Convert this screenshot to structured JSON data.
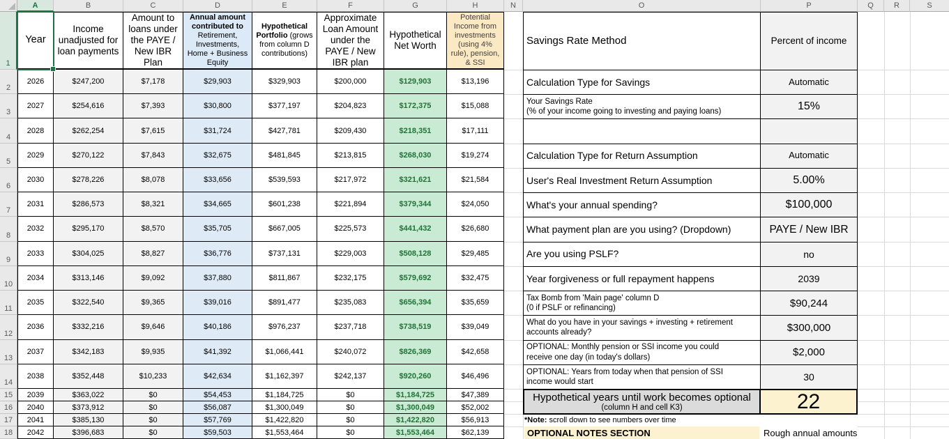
{
  "sheet": {
    "column_letters": [
      "A",
      "B",
      "C",
      "D",
      "E",
      "F",
      "G",
      "H",
      "N",
      "O",
      "P",
      "Q",
      "R",
      "S"
    ],
    "selected_column": "A",
    "selected_cell": "A1",
    "visible_rows": 18
  },
  "colors": {
    "selection_accent": "#217346",
    "good_cell_fill": "#c9ebd3",
    "good_cell_text": "#1f7235",
    "blue_column_fill": "#deebf7",
    "tan_header_fill": "#fbe9c4",
    "yellow_highlight_fill": "#fdf2cf",
    "input_cell_fill": "#f2f2f2",
    "summary_label_fill": "#dbdbdb"
  },
  "table": {
    "headers": [
      {
        "text": "Year"
      },
      {
        "text": "Income unadjusted for loan payments"
      },
      {
        "text": "Amount to loans under the PAYE / New IBR Plan"
      },
      {
        "bold": "Annual amount contributed to",
        "rest": " Retirement, Investments, Home + Business Equity"
      },
      {
        "bold": "Hypothetical Portfolio",
        "rest": " (grows from column D contributions)"
      },
      {
        "text": "Approximate Loan Amount under the PAYE / New IBR plan"
      },
      {
        "text": "Hypothetical Net Worth"
      },
      {
        "text": "Potential Income from investments (using 4% rule), pension, & SSI"
      }
    ],
    "rows": [
      [
        "2026",
        "$247,200",
        "$7,178",
        "$29,903",
        "$329,903",
        "$200,000",
        "$129,903",
        "$13,196"
      ],
      [
        "2027",
        "$254,616",
        "$7,393",
        "$30,800",
        "$377,197",
        "$204,823",
        "$172,375",
        "$15,088"
      ],
      [
        "2028",
        "$262,254",
        "$7,615",
        "$31,724",
        "$427,781",
        "$209,430",
        "$218,351",
        "$17,111"
      ],
      [
        "2029",
        "$270,122",
        "$7,843",
        "$32,675",
        "$481,845",
        "$213,815",
        "$268,030",
        "$19,274"
      ],
      [
        "2030",
        "$278,226",
        "$8,078",
        "$33,656",
        "$539,593",
        "$217,972",
        "$321,621",
        "$21,584"
      ],
      [
        "2031",
        "$286,573",
        "$8,321",
        "$34,665",
        "$601,238",
        "$221,894",
        "$379,344",
        "$24,050"
      ],
      [
        "2032",
        "$295,170",
        "$8,570",
        "$35,705",
        "$667,005",
        "$225,573",
        "$441,432",
        "$26,680"
      ],
      [
        "2033",
        "$304,025",
        "$8,827",
        "$36,776",
        "$737,131",
        "$229,003",
        "$508,128",
        "$29,485"
      ],
      [
        "2034",
        "$313,146",
        "$9,092",
        "$37,880",
        "$811,867",
        "$232,175",
        "$579,692",
        "$32,475"
      ],
      [
        "2035",
        "$322,540",
        "$9,365",
        "$39,016",
        "$891,477",
        "$235,083",
        "$656,394",
        "$35,659"
      ],
      [
        "2036",
        "$332,216",
        "$9,646",
        "$40,186",
        "$976,237",
        "$237,718",
        "$738,519",
        "$39,049"
      ],
      [
        "2037",
        "$342,183",
        "$9,935",
        "$41,392",
        "$1,066,441",
        "$240,072",
        "$826,369",
        "$42,658"
      ],
      [
        "2038",
        "$352,448",
        "$10,233",
        "$42,634",
        "$1,162,397",
        "$242,137",
        "$920,260",
        "$46,496"
      ],
      [
        "2039",
        "$363,022",
        "$0",
        "$54,453",
        "$1,184,725",
        "$0",
        "$1,184,725",
        "$47,389"
      ],
      [
        "2040",
        "$373,912",
        "$0",
        "$56,087",
        "$1,300,049",
        "$0",
        "$1,300,049",
        "$52,002"
      ],
      [
        "2041",
        "$385,130",
        "$0",
        "$57,769",
        "$1,422,820",
        "$0",
        "$1,422,820",
        "$56,913"
      ],
      [
        "2042",
        "$396,683",
        "$0",
        "$59,503",
        "$1,553,464",
        "$0",
        "$1,553,464",
        "$62,139"
      ]
    ]
  },
  "panel": {
    "rows": [
      {
        "lines": [
          "Savings Rate Method"
        ],
        "value": "Percent of income"
      },
      {
        "lines": [
          "Calculation Type for Savings"
        ],
        "value": "Automatic"
      },
      {
        "lines": [
          "Your Savings Rate",
          "(% of your income going to investing and paying loans)"
        ],
        "value": "15%"
      },
      {
        "lines": [],
        "value": ""
      },
      {
        "lines": [
          "Calculation Type for Return Assumption"
        ],
        "value": "Automatic"
      },
      {
        "lines": [
          "User's Real Investment Return Assumption"
        ],
        "value": "5.00%"
      },
      {
        "lines": [
          "What's your annual spending?"
        ],
        "value": "$100,000"
      },
      {
        "lines": [
          "What payment plan are you using? (Dropdown)"
        ],
        "value": "PAYE / New IBR"
      },
      {
        "lines": [
          "Are you using PSLF?"
        ],
        "value": "no"
      },
      {
        "lines": [
          "Year forgiveness or full repayment happens"
        ],
        "value": "2039"
      },
      {
        "lines": [
          "Tax Bomb from 'Main page' column D",
          "(0 if PSLF or refinancing)"
        ],
        "value": "$90,244"
      },
      {
        "lines": [
          "What do you have in your savings + investing + retirement",
          "accounts already?"
        ],
        "value": "$300,000"
      },
      {
        "lines": [
          "OPTIONAL: Monthly pension or SSI income you could",
          "receive one day (in today's dollars)"
        ],
        "value": "$2,000"
      },
      {
        "lines": [
          "OPTIONAL: Years from today when that pension of SSI",
          "income would start"
        ],
        "value": "30"
      }
    ],
    "summary": {
      "label_line1": "Hypothetical years until work becomes optional",
      "label_line2": "(column H and cell K3)",
      "value": "22"
    },
    "note_label": "*Note:",
    "note_text": "scroll down to see numbers over time",
    "notes_header": "OPTIONAL NOTES SECTION",
    "rough_note": "Rough annual amounts"
  }
}
